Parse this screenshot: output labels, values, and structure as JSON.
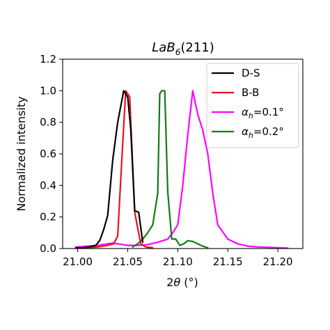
{
  "chart_data": {
    "type": "line",
    "title_parts": {
      "main": "LaB",
      "sub": "6",
      "tail": "(211)"
    },
    "xlabel_parts": {
      "prefix": "2",
      "theta": "θ",
      "suffix": " (°)"
    },
    "ylabel": "Normalized intensity",
    "xlim": [
      20.985,
      21.225
    ],
    "ylim": [
      0,
      1.2
    ],
    "xticks": [
      21.0,
      21.05,
      21.1,
      21.15,
      21.2
    ],
    "xtick_labels": [
      "21.00",
      "21.05",
      "21.10",
      "21.15",
      "21.20"
    ],
    "yticks": [
      0.0,
      0.2,
      0.4,
      0.6,
      0.8,
      1.0,
      1.2
    ],
    "ytick_labels": [
      "0.0",
      "0.2",
      "0.4",
      "0.6",
      "0.8",
      "1.0",
      "1.2"
    ],
    "legend_position": "top-right",
    "series": [
      {
        "name": "D-S",
        "color": "#000000",
        "x": [
          20.998,
          21.005,
          21.012,
          21.018,
          21.022,
          21.026,
          21.03,
          21.035,
          21.04,
          21.043,
          21.046,
          21.05,
          21.053,
          21.057,
          21.061,
          21.065
        ],
        "y": [
          0.003,
          0.005,
          0.01,
          0.02,
          0.05,
          0.12,
          0.21,
          0.56,
          0.8,
          0.9,
          1.0,
          0.96,
          0.76,
          0.24,
          0.23,
          0.04
        ]
      },
      {
        "name": "B-B",
        "color": "#e6121b",
        "x": [
          20.998,
          21.01,
          21.02,
          21.03,
          21.036,
          21.04,
          21.044,
          21.048,
          21.052,
          21.057,
          21.063,
          21.068,
          21.075
        ],
        "y": [
          0.003,
          0.005,
          0.01,
          0.02,
          0.03,
          0.08,
          0.55,
          1.0,
          0.96,
          0.23,
          0.03,
          0.01,
          0.005
        ]
      },
      {
        "name": "alpha_h=0.1°",
        "name_parts": {
          "alpha": "α",
          "sub": "h",
          "tail": "=0.1°"
        },
        "color": "#ff00ff",
        "x": [
          20.998,
          21.01,
          21.02,
          21.03,
          21.035,
          21.04,
          21.05,
          21.06,
          21.07,
          21.08,
          21.09,
          21.095,
          21.1,
          21.105,
          21.11,
          21.115,
          21.12,
          21.125,
          21.13,
          21.135,
          21.14,
          21.15,
          21.16,
          21.17,
          21.18,
          21.19,
          21.2,
          21.21
        ],
        "y": [
          0.01,
          0.015,
          0.02,
          0.03,
          0.035,
          0.03,
          0.02,
          0.02,
          0.025,
          0.04,
          0.06,
          0.1,
          0.15,
          0.4,
          0.72,
          1.0,
          0.85,
          0.75,
          0.6,
          0.35,
          0.15,
          0.06,
          0.03,
          0.015,
          0.01,
          0.008,
          0.005,
          0.003
        ]
      },
      {
        "name": "alpha_h=0.2°",
        "name_parts": {
          "alpha": "α",
          "sub": "h",
          "tail": "=0.2°"
        },
        "color": "#127a12",
        "x": [
          21.055,
          21.06,
          21.065,
          21.07,
          21.075,
          21.08,
          21.082,
          21.084,
          21.087,
          21.09,
          21.094,
          21.098,
          21.102,
          21.106,
          21.11,
          21.115,
          21.12,
          21.125,
          21.13
        ],
        "y": [
          0.01,
          0.03,
          0.06,
          0.1,
          0.15,
          0.35,
          0.98,
          1.0,
          1.0,
          0.36,
          0.06,
          0.06,
          0.02,
          0.03,
          0.05,
          0.045,
          0.03,
          0.015,
          0.005
        ]
      }
    ]
  }
}
